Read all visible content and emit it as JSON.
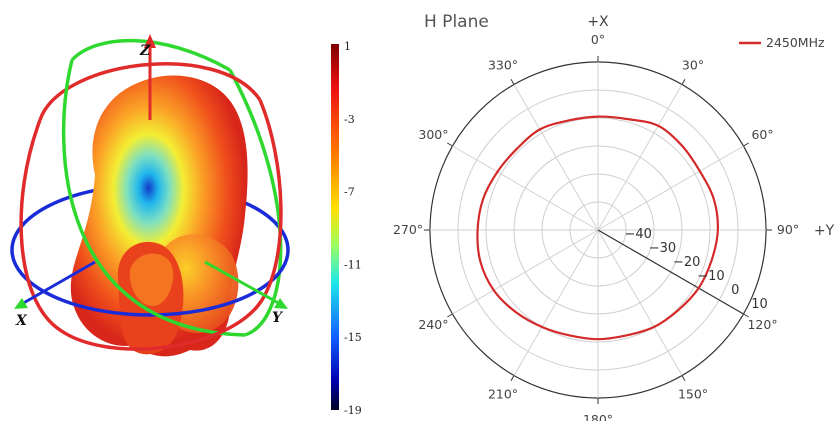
{
  "pattern_3d": {
    "axes": {
      "z": "Z",
      "x": "X",
      "y": "Y"
    },
    "colors": {
      "x_ring": "#1a2bd8",
      "y_ring": "#2fd82f",
      "z_ring": "#e12b2b"
    }
  },
  "colorbar": {
    "ticks": [
      "1",
      "-3",
      "-7",
      "-11",
      "-15",
      "-19"
    ],
    "range": [
      -19,
      1
    ]
  },
  "chart_data": {
    "type": "polar-line",
    "title": "H Plane",
    "axis_labels": {
      "top": "+X",
      "right": "+Y"
    },
    "angular_ticks": [
      "0°",
      "30°",
      "60°",
      "90°",
      "120°",
      "150°",
      "180°",
      "210°",
      "240°",
      "270°",
      "300°",
      "330°"
    ],
    "radial_ticks": [
      "−40",
      "−30",
      "−20",
      "−10",
      "0",
      "10"
    ],
    "radial_range": [
      -50,
      10
    ],
    "radial_label_angle_deg": 120,
    "legend_position": "top-right",
    "series": [
      {
        "name": "2450MHz",
        "color": "#d42a2a",
        "theta_deg": [
          0,
          15,
          30,
          45,
          60,
          75,
          90,
          105,
          120,
          135,
          150,
          165,
          180,
          195,
          210,
          225,
          240,
          255,
          270,
          285,
          300,
          315,
          330,
          345
        ],
        "r_db": [
          -9.5,
          -9.0,
          -7.0,
          -7.5,
          -8.0,
          -7.2,
          -7.2,
          -8.0,
          -8.5,
          -9.5,
          -10.0,
          -11.0,
          -11.0,
          -11.0,
          -10.0,
          -8.5,
          -7.0,
          -6.5,
          -7.0,
          -7.5,
          -8.5,
          -9.0,
          -8.5,
          -9.5
        ]
      }
    ]
  }
}
